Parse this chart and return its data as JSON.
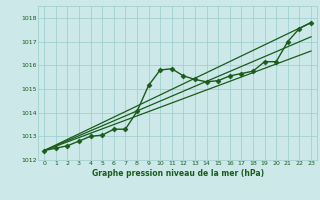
{
  "title": "Graphe pression niveau de la mer (hPa)",
  "background_color": "#cce8e8",
  "grid_color": "#99cccc",
  "line_color": "#1a5c1a",
  "text_color": "#1a5c1a",
  "xlim": [
    -0.5,
    23.5
  ],
  "ylim": [
    1012,
    1018.5
  ],
  "x_ticks": [
    0,
    1,
    2,
    3,
    4,
    5,
    6,
    7,
    8,
    9,
    10,
    11,
    12,
    13,
    14,
    15,
    16,
    17,
    18,
    19,
    20,
    21,
    22,
    23
  ],
  "y_ticks": [
    1012,
    1013,
    1014,
    1015,
    1016,
    1017,
    1018
  ],
  "series": [
    {
      "x": [
        0,
        1,
        2,
        3,
        4,
        5,
        6,
        7,
        8,
        9,
        10,
        11,
        12,
        13,
        14,
        15,
        16,
        17,
        18,
        19,
        20,
        21,
        22,
        23
      ],
      "y": [
        1012.4,
        1012.5,
        1012.6,
        1012.8,
        1013.0,
        1013.05,
        1013.3,
        1013.3,
        1014.05,
        1015.15,
        1015.8,
        1015.85,
        1015.55,
        1015.4,
        1015.3,
        1015.35,
        1015.55,
        1015.65,
        1015.75,
        1016.15,
        1016.15,
        1017.0,
        1017.55,
        1017.8
      ],
      "marker": "D",
      "markersize": 2.5,
      "linewidth": 1.0
    },
    {
      "x": [
        0,
        23
      ],
      "y": [
        1012.4,
        1017.8
      ],
      "marker": null,
      "markersize": 0,
      "linewidth": 0.9
    },
    {
      "x": [
        0,
        23
      ],
      "y": [
        1012.4,
        1017.2
      ],
      "marker": null,
      "markersize": 0,
      "linewidth": 0.9
    },
    {
      "x": [
        0,
        23
      ],
      "y": [
        1012.4,
        1016.6
      ],
      "marker": null,
      "markersize": 0,
      "linewidth": 0.9
    }
  ]
}
